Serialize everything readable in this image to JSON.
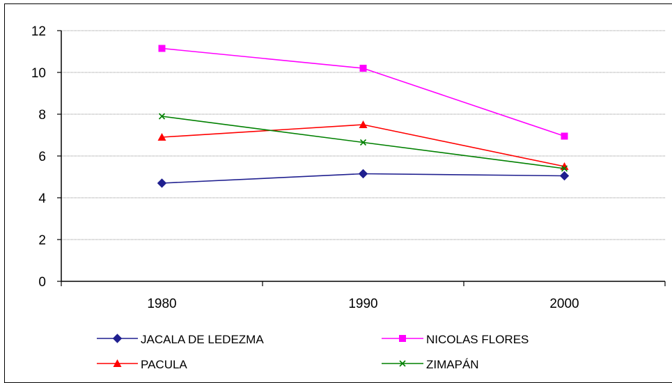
{
  "chart_data": {
    "type": "line",
    "x": [
      "1980",
      "1990",
      "2000"
    ],
    "ylim": [
      0,
      12
    ],
    "yticks": [
      "0",
      "2",
      "4",
      "6",
      "8",
      "10",
      "12"
    ],
    "grid": true,
    "legend_position": "bottom",
    "series": [
      {
        "name": "JACALA DE LEDEZMA",
        "values": [
          4.7,
          5.15,
          5.05
        ],
        "color": "#1f1f8f",
        "marker": "diamond"
      },
      {
        "name": "NICOLAS FLORES",
        "values": [
          11.15,
          10.2,
          6.95
        ],
        "color": "#ff00ff",
        "marker": "square"
      },
      {
        "name": "PACULA",
        "values": [
          6.9,
          7.5,
          5.5
        ],
        "color": "#ff0000",
        "marker": "triangle"
      },
      {
        "name": "ZIMAPÁN",
        "values": [
          7.9,
          6.65,
          5.4
        ],
        "color": "#008000",
        "marker": "x"
      }
    ]
  }
}
